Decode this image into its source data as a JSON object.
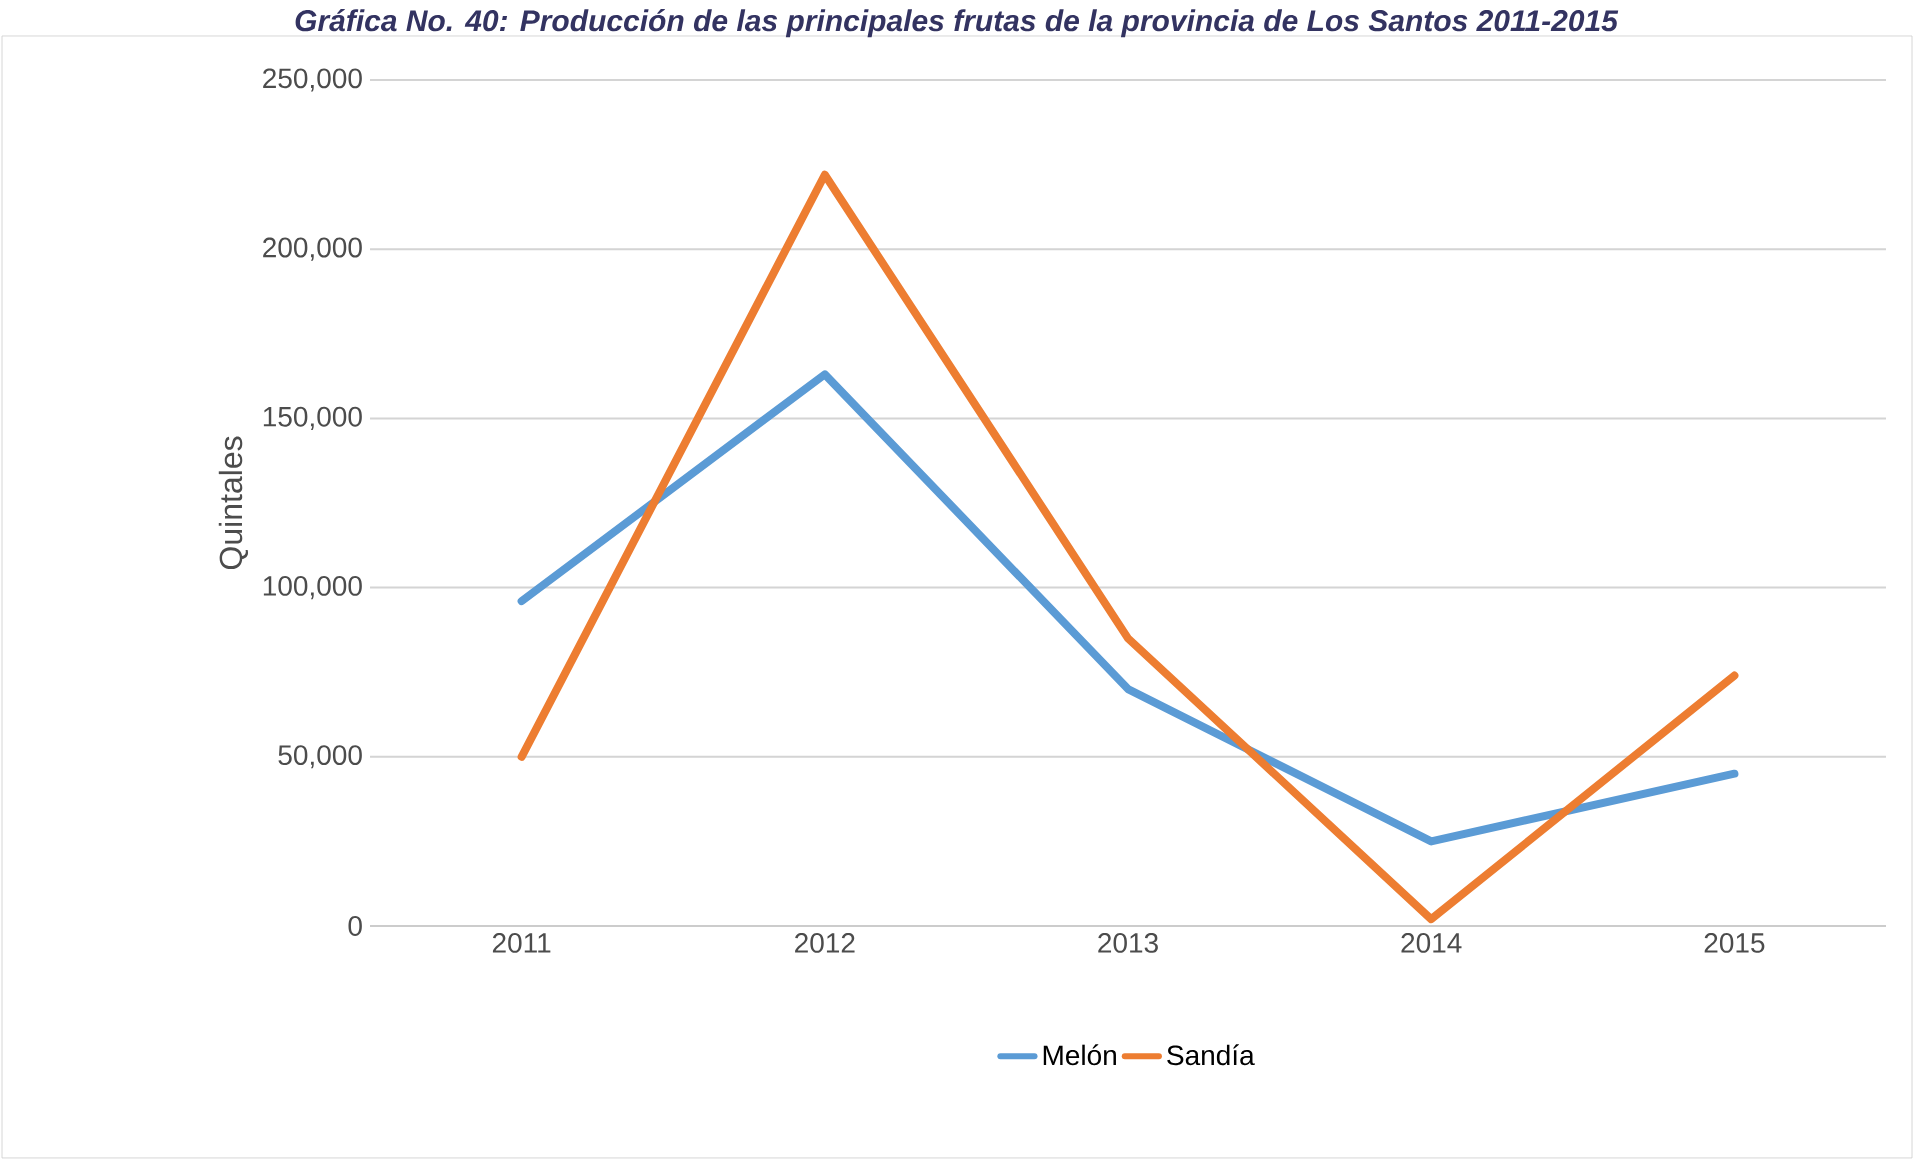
{
  "chart_data": {
    "type": "line",
    "title": "Gráfica No. 40: Producción de las principales frutas de la provincia de Los Santos 2011-2015",
    "ylabel": "Quintales",
    "categories": [
      "2011",
      "2012",
      "2013",
      "2014",
      "2015"
    ],
    "series": [
      {
        "name": "Melón",
        "color": "#5b9bd5",
        "values": [
          96000,
          163000,
          70000,
          25000,
          45000
        ]
      },
      {
        "name": "Sandía",
        "color": "#ed7d31",
        "values": [
          50000,
          222000,
          85000,
          2000,
          74000
        ]
      }
    ],
    "ylim": [
      0,
      250000
    ],
    "yticks": [
      {
        "value": 0,
        "label": "0"
      },
      {
        "value": 50000,
        "label": "50,000"
      },
      {
        "value": 100000,
        "label": "100,000"
      },
      {
        "value": 150000,
        "label": "150,000"
      },
      {
        "value": 200000,
        "label": "200,000"
      },
      {
        "value": 250000,
        "label": "250,000"
      }
    ],
    "grid": "y",
    "legend": "bottom",
    "marker": "none",
    "line_style": "solid"
  }
}
